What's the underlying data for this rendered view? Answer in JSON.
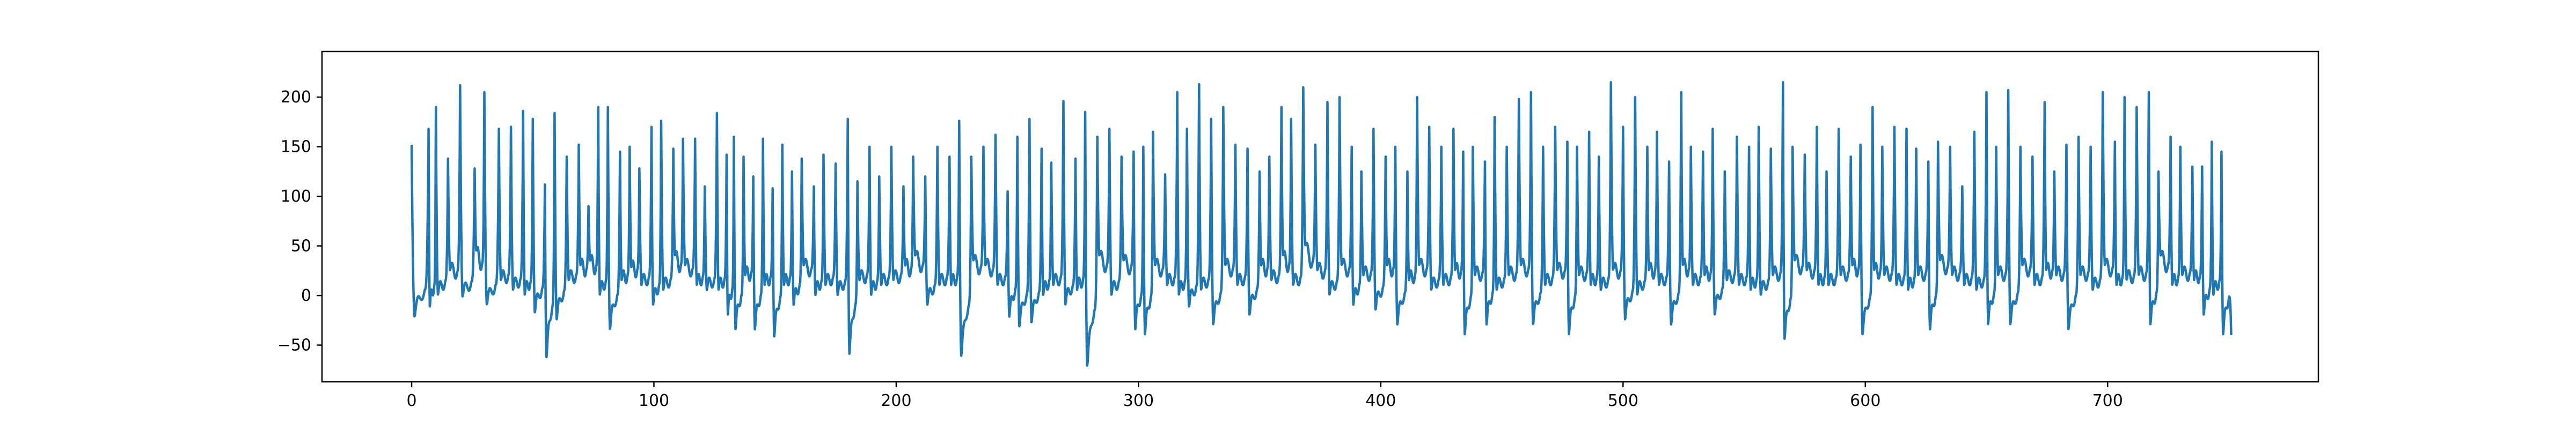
{
  "chart_data": {
    "type": "line",
    "title": "",
    "xlabel": "",
    "ylabel": "",
    "xlim": [
      -37,
      787
    ],
    "ylim": [
      -87,
      246
    ],
    "x_ticks": [
      0,
      100,
      200,
      300,
      400,
      500,
      600,
      700
    ],
    "y_ticks": [
      -50,
      0,
      50,
      100,
      150,
      200
    ],
    "grid": false,
    "line_color": "#1f77b4",
    "peaks": [
      [
        0,
        152,
        -22
      ],
      [
        7,
        168,
        -12
      ],
      [
        10,
        190,
        0
      ],
      [
        15,
        138,
        25
      ],
      [
        20,
        212,
        -2
      ],
      [
        26,
        128,
        45
      ],
      [
        30,
        205,
        -10
      ],
      [
        36,
        168,
        15
      ],
      [
        41,
        170,
        5
      ],
      [
        46,
        186,
        0
      ],
      [
        50,
        178,
        -18
      ],
      [
        55,
        112,
        -63
      ],
      [
        59,
        184,
        -25
      ],
      [
        64,
        140,
        15
      ],
      [
        69,
        152,
        30
      ],
      [
        73,
        90,
        35
      ],
      [
        77,
        190,
        0
      ],
      [
        81,
        190,
        -35
      ],
      [
        86,
        145,
        15
      ],
      [
        90,
        150,
        28
      ],
      [
        94,
        128,
        10
      ],
      [
        99,
        170,
        -10
      ],
      [
        103,
        176,
        5
      ],
      [
        108,
        148,
        40
      ],
      [
        112,
        158,
        30
      ],
      [
        117,
        158,
        10
      ],
      [
        121,
        110,
        5
      ],
      [
        126,
        184,
        5
      ],
      [
        130,
        142,
        -20
      ],
      [
        133,
        160,
        -35
      ],
      [
        137,
        140,
        20
      ],
      [
        141,
        120,
        -35
      ],
      [
        145,
        158,
        10
      ],
      [
        149,
        108,
        -42
      ],
      [
        153,
        152,
        10
      ],
      [
        157,
        125,
        -10
      ],
      [
        161,
        138,
        30
      ],
      [
        166,
        110,
        0
      ],
      [
        170,
        142,
        10
      ],
      [
        175,
        133,
        0
      ],
      [
        180,
        178,
        -60
      ],
      [
        184,
        115,
        15
      ],
      [
        189,
        150,
        0
      ],
      [
        193,
        120,
        10
      ],
      [
        198,
        150,
        15
      ],
      [
        203,
        110,
        30
      ],
      [
        207,
        140,
        40
      ],
      [
        212,
        120,
        -10
      ],
      [
        217,
        150,
        10
      ],
      [
        222,
        140,
        10
      ],
      [
        226,
        176,
        -62
      ],
      [
        231,
        140,
        35
      ],
      [
        236,
        150,
        30
      ],
      [
        241,
        162,
        10
      ],
      [
        246,
        105,
        -22
      ],
      [
        250,
        160,
        -32
      ],
      [
        255,
        178,
        -28
      ],
      [
        260,
        148,
        0
      ],
      [
        264,
        134,
        10
      ],
      [
        269,
        196,
        -10
      ],
      [
        274,
        138,
        5
      ],
      [
        278,
        185,
        -72
      ],
      [
        283,
        160,
        40
      ],
      [
        288,
        168,
        0
      ],
      [
        293,
        140,
        35
      ],
      [
        298,
        145,
        -35
      ],
      [
        302,
        150,
        -40
      ],
      [
        306,
        165,
        30
      ],
      [
        311,
        122,
        10
      ],
      [
        316,
        205,
        0
      ],
      [
        320,
        168,
        -12
      ],
      [
        325,
        213,
        5
      ],
      [
        330,
        178,
        -30
      ],
      [
        335,
        190,
        30
      ],
      [
        340,
        152,
        10
      ],
      [
        345,
        148,
        -20
      ],
      [
        350,
        125,
        30
      ],
      [
        354,
        140,
        15
      ],
      [
        359,
        190,
        40
      ],
      [
        363,
        178,
        10
      ],
      [
        368,
        210,
        50
      ],
      [
        373,
        152,
        25
      ],
      [
        378,
        195,
        0
      ],
      [
        383,
        200,
        30
      ],
      [
        388,
        150,
        -10
      ],
      [
        392,
        125,
        20
      ],
      [
        397,
        168,
        -15
      ],
      [
        402,
        140,
        30
      ],
      [
        406,
        150,
        -30
      ],
      [
        411,
        125,
        15
      ],
      [
        415,
        200,
        30
      ],
      [
        420,
        170,
        5
      ],
      [
        425,
        150,
        10
      ],
      [
        430,
        168,
        25
      ],
      [
        434,
        145,
        -40
      ],
      [
        438,
        150,
        20
      ],
      [
        443,
        135,
        -30
      ],
      [
        447,
        180,
        5
      ],
      [
        452,
        150,
        20
      ],
      [
        457,
        198,
        30
      ],
      [
        462,
        205,
        -30
      ],
      [
        467,
        150,
        10
      ],
      [
        472,
        170,
        25
      ],
      [
        477,
        155,
        -40
      ],
      [
        481,
        150,
        20
      ],
      [
        486,
        165,
        10
      ],
      [
        490,
        140,
        5
      ],
      [
        495,
        215,
        25
      ],
      [
        500,
        170,
        -25
      ],
      [
        505,
        200,
        0
      ],
      [
        510,
        150,
        25
      ],
      [
        514,
        165,
        10
      ],
      [
        519,
        135,
        -30
      ],
      [
        524,
        205,
        30
      ],
      [
        528,
        150,
        10
      ],
      [
        533,
        145,
        20
      ],
      [
        537,
        168,
        -20
      ],
      [
        542,
        125,
        15
      ],
      [
        547,
        160,
        10
      ],
      [
        552,
        150,
        5
      ],
      [
        556,
        170,
        0
      ],
      [
        561,
        148,
        20
      ],
      [
        566,
        215,
        -45
      ],
      [
        570,
        150,
        35
      ],
      [
        575,
        142,
        25
      ],
      [
        580,
        170,
        10
      ],
      [
        584,
        125,
        10
      ],
      [
        589,
        168,
        20
      ],
      [
        594,
        140,
        30
      ],
      [
        598,
        152,
        -40
      ],
      [
        603,
        190,
        25
      ],
      [
        607,
        150,
        20
      ],
      [
        612,
        170,
        10
      ],
      [
        617,
        168,
        5
      ],
      [
        621,
        148,
        20
      ],
      [
        626,
        135,
        -35
      ],
      [
        630,
        155,
        35
      ],
      [
        635,
        150,
        20
      ],
      [
        640,
        110,
        10
      ],
      [
        645,
        165,
        5
      ],
      [
        650,
        205,
        -30
      ],
      [
        654,
        150,
        20
      ],
      [
        659,
        207,
        -30
      ],
      [
        664,
        150,
        30
      ],
      [
        669,
        140,
        10
      ],
      [
        674,
        195,
        25
      ],
      [
        678,
        125,
        20
      ],
      [
        683,
        152,
        -35
      ],
      [
        688,
        160,
        20
      ],
      [
        693,
        150,
        5
      ],
      [
        698,
        205,
        30
      ],
      [
        703,
        155,
        10
      ],
      [
        707,
        200,
        15
      ],
      [
        712,
        190,
        20
      ],
      [
        717,
        205,
        -30
      ],
      [
        721,
        125,
        40
      ],
      [
        726,
        160,
        10
      ],
      [
        730,
        150,
        20
      ],
      [
        735,
        130,
        15
      ],
      [
        739,
        130,
        -20
      ],
      [
        743,
        155,
        0
      ],
      [
        747,
        145,
        -40
      ]
    ]
  }
}
